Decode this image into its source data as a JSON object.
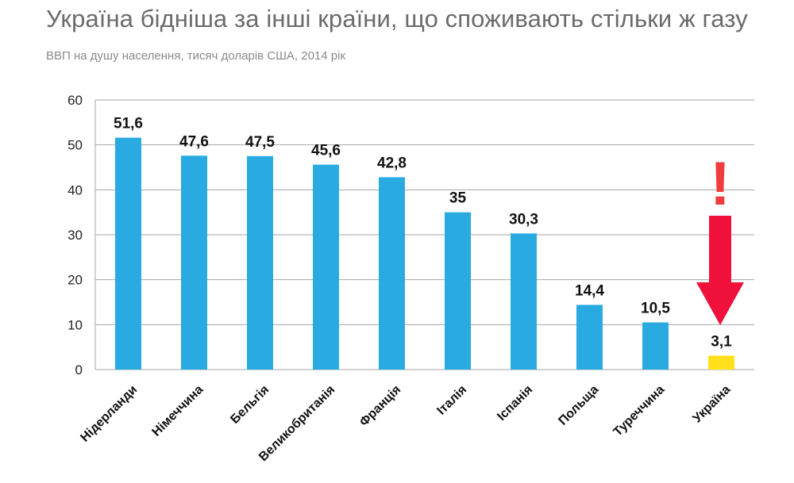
{
  "header": {
    "title": "Україна бідніша за інші країни, що споживають стільки ж газу",
    "subtitle": "ВВП на душу населення, тисяч доларів США, 2014 рік"
  },
  "annotation": {
    "exclamation": "!"
  },
  "colors": {
    "bar": "#29abe2",
    "highlight": "#ffe01b",
    "arrow": "#f0103c",
    "grid": "#a6a6a6"
  },
  "chart_data": {
    "type": "bar",
    "title": "Україна бідніша за інші країни, що споживають стільки ж газу",
    "subtitle": "ВВП на душу населення, тисяч доларів США, 2014 рік",
    "xlabel": "",
    "ylabel": "",
    "ylim": [
      0,
      60
    ],
    "yticks": [
      0,
      10,
      20,
      30,
      40,
      50,
      60
    ],
    "grid": true,
    "categories": [
      "Нідерланди",
      "Німеччина",
      "Бельгія",
      "Великобританія",
      "Франція",
      "Італія",
      "Іспанія",
      "Польща",
      "Туреччина",
      "Україна"
    ],
    "values": [
      51.6,
      47.6,
      47.5,
      45.6,
      42.8,
      35,
      30.3,
      14.4,
      10.5,
      3.1
    ],
    "value_labels": [
      "51,6",
      "47,6",
      "47,5",
      "45,6",
      "42,8",
      "35",
      "30,3",
      "14,4",
      "10,5",
      "3,1"
    ],
    "highlight_category": "Україна"
  }
}
